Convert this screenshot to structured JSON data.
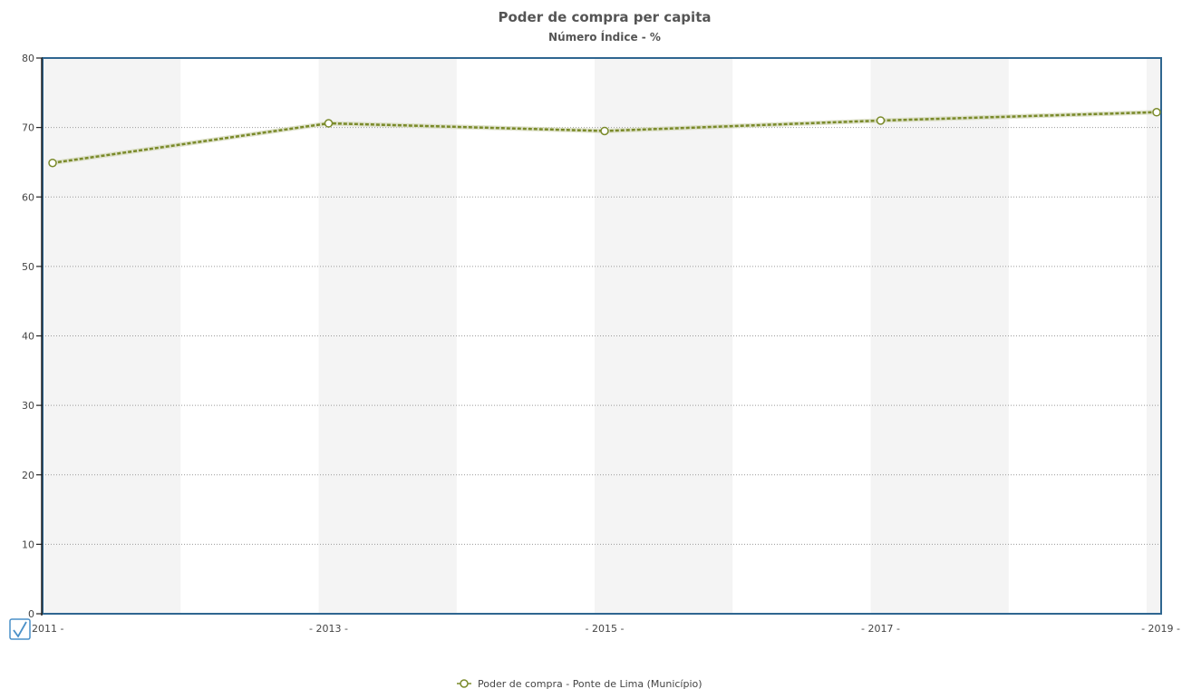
{
  "chart_data": {
    "type": "line",
    "title": "Poder de compra per capita",
    "subtitle": "Número Índice - %",
    "xlabel": "",
    "ylabel": "",
    "x": [
      2011,
      2013,
      2015,
      2017,
      2019
    ],
    "x_tick_labels": [
      "2011 -",
      "- 2013 -",
      "- 2015 -",
      "- 2017 -",
      "- 2019 -"
    ],
    "y_ticks": [
      0,
      10,
      20,
      30,
      40,
      50,
      60,
      70,
      80
    ],
    "ylim": [
      0,
      80
    ],
    "series": [
      {
        "name": "Poder de compra - Ponte de Lima (Município)",
        "values": [
          64.9,
          70.6,
          69.5,
          71.0,
          72.2
        ],
        "color": "#7a8a2a"
      }
    ],
    "grid": true,
    "legend_position": "bottom-center"
  },
  "colors": {
    "plot_border": "#2f6690",
    "band": "#f4f4f4",
    "grid": "#9a9a9a",
    "axis": "#222222",
    "checkbox": "#4a90c8"
  },
  "toggle_icon": "checkmark-icon"
}
